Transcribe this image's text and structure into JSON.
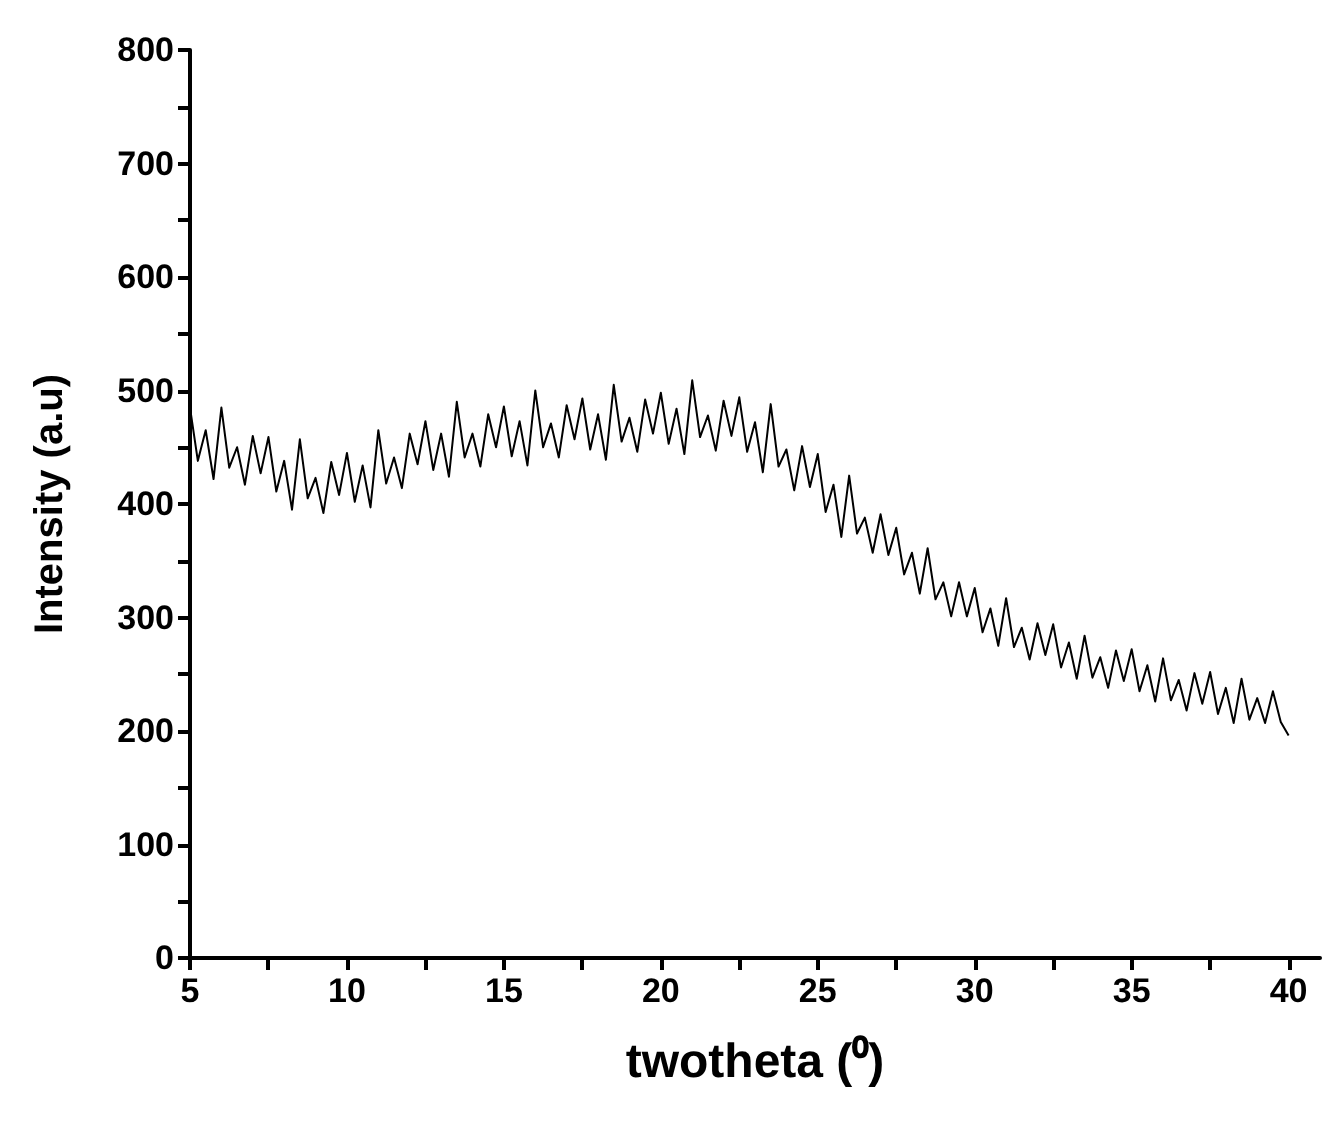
{
  "chart_data": {
    "type": "line",
    "xlabel": "twotheta (⁰)",
    "ylabel": "Intensity (a.u)",
    "x": [
      5,
      5.25,
      5.5,
      5.75,
      6,
      6.25,
      6.5,
      6.75,
      7,
      7.25,
      7.5,
      7.75,
      8,
      8.25,
      8.5,
      8.75,
      9,
      9.25,
      9.5,
      9.75,
      10,
      10.25,
      10.5,
      10.75,
      11,
      11.25,
      11.5,
      11.75,
      12,
      12.25,
      12.5,
      12.75,
      13,
      13.25,
      13.5,
      13.75,
      14,
      14.25,
      14.5,
      14.75,
      15,
      15.25,
      15.5,
      15.75,
      16,
      16.25,
      16.5,
      16.75,
      17,
      17.25,
      17.5,
      17.75,
      18,
      18.25,
      18.5,
      18.75,
      19,
      19.25,
      19.5,
      19.75,
      20,
      20.25,
      20.5,
      20.75,
      21,
      21.25,
      21.5,
      21.75,
      22,
      22.25,
      22.5,
      22.75,
      23,
      23.25,
      23.5,
      23.75,
      24,
      24.25,
      24.5,
      24.75,
      25,
      25.25,
      25.5,
      25.75,
      26,
      26.25,
      26.5,
      26.75,
      27,
      27.25,
      27.5,
      27.75,
      28,
      28.25,
      28.5,
      28.75,
      29,
      29.25,
      29.5,
      29.75,
      30,
      30.25,
      30.5,
      30.75,
      31,
      31.25,
      31.5,
      31.75,
      32,
      32.25,
      32.5,
      32.75,
      33,
      33.25,
      33.5,
      33.75,
      34,
      34.25,
      34.5,
      34.75,
      35,
      35.25,
      35.5,
      35.75,
      36,
      36.25,
      36.5,
      36.75,
      37,
      37.25,
      37.5,
      37.75,
      38,
      38.25,
      38.5,
      38.75,
      39,
      39.25,
      39.5,
      39.75,
      40
    ],
    "series": [
      {
        "color": "#000000",
        "values": [
          485,
          438,
          465,
          422,
          485,
          432,
          450,
          417,
          460,
          427,
          459,
          411,
          438,
          395,
          457,
          405,
          423,
          392,
          437,
          408,
          445,
          402,
          434,
          397,
          465,
          418,
          441,
          414,
          462,
          435,
          473,
          430,
          462,
          424,
          490,
          441,
          462,
          433,
          479,
          450,
          486,
          442,
          473,
          434,
          500,
          450,
          471,
          441,
          487,
          457,
          493,
          448,
          479,
          439,
          505,
          455,
          476,
          446,
          492,
          462,
          498,
          453,
          484,
          444,
          509,
          459,
          478,
          447,
          491,
          460,
          494,
          446,
          472,
          428,
          488,
          433,
          448,
          412,
          451,
          415,
          444,
          393,
          417,
          371,
          425,
          374,
          388,
          357,
          391,
          355,
          379,
          338,
          357,
          321,
          361,
          316,
          331,
          301,
          331,
          301,
          326,
          287,
          308,
          275,
          317,
          274,
          291,
          263,
          295,
          267,
          294,
          256,
          278,
          246,
          284,
          247,
          265,
          238,
          271,
          244,
          272,
          235,
          258,
          226,
          264,
          227,
          245,
          218,
          251,
          224,
          252,
          215,
          238,
          207,
          246,
          210,
          229,
          207,
          235,
          208,
          196
        ]
      }
    ],
    "xlim": [
      5,
      41
    ],
    "xticks": [
      5,
      {
        "value": 7.5,
        "label": null
      },
      10,
      {
        "value": 12.5,
        "label": null
      },
      15,
      {
        "value": 17.5,
        "label": null
      },
      20,
      {
        "value": 22.5,
        "label": null
      },
      25,
      {
        "value": 27.5,
        "label": null
      },
      30,
      {
        "value": 32.5,
        "label": null
      },
      35,
      {
        "value": 37.5,
        "label": null
      },
      40
    ],
    "ylim": [
      0,
      800
    ],
    "yticks": [
      0,
      {
        "value": 50,
        "label": null
      },
      100,
      {
        "value": 150,
        "label": null
      },
      200,
      {
        "value": 250,
        "label": null
      },
      300,
      {
        "value": 350,
        "label": null
      },
      400,
      {
        "value": 450,
        "label": null
      },
      500,
      {
        "value": 550,
        "label": null
      },
      600,
      {
        "value": 650,
        "label": null
      },
      700,
      {
        "value": 750,
        "label": null
      },
      800
    ],
    "grid": false,
    "marker": "none",
    "line_style": "solid"
  }
}
